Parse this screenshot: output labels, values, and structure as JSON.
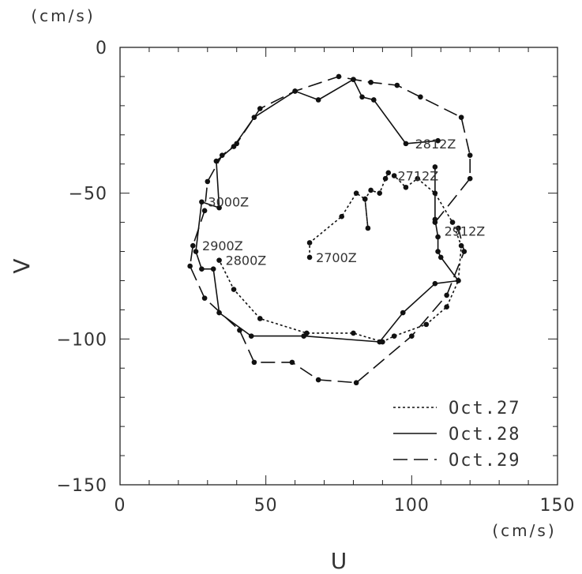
{
  "chart_data": {
    "type": "line",
    "xlabel": "U",
    "ylabel": "V",
    "x_unit": "(cm/s)",
    "y_unit": "(cm/s)",
    "xlim": [
      0,
      150
    ],
    "ylim": [
      -150,
      0
    ],
    "x_ticks": [
      0,
      50,
      100,
      150
    ],
    "y_ticks": [
      0,
      -50,
      -100,
      -150
    ],
    "x_tick_labels": [
      "0",
      "50",
      "100",
      "150"
    ],
    "y_tick_labels": [
      "0",
      "−50",
      "−100",
      "−150"
    ],
    "grid": false,
    "legend_position": "bottom-right",
    "series": [
      {
        "name": "Oct.27",
        "style": "dotted",
        "points": [
          [
            65,
            -72
          ],
          [
            65,
            -67
          ],
          [
            76,
            -58
          ],
          [
            81,
            -50
          ],
          [
            84,
            -52
          ],
          [
            85,
            -62
          ],
          [
            84,
            -52
          ],
          [
            86,
            -49
          ],
          [
            89,
            -50
          ],
          [
            91,
            -45
          ],
          [
            92,
            -43
          ],
          [
            94,
            -44
          ],
          [
            98,
            -48
          ],
          [
            102,
            -45
          ],
          [
            108,
            -50
          ],
          [
            114,
            -60
          ],
          [
            117,
            -68
          ],
          [
            116,
            -80
          ],
          [
            112,
            -89
          ],
          [
            105,
            -95
          ],
          [
            94,
            -99
          ],
          [
            90,
            -101
          ],
          [
            80,
            -98
          ],
          [
            64,
            -98
          ],
          [
            48,
            -93
          ],
          [
            39,
            -83
          ],
          [
            34,
            -73
          ]
        ]
      },
      {
        "name": "Oct.28",
        "style": "solid",
        "points": [
          [
            109,
            -32
          ],
          [
            98,
            -33
          ],
          [
            87,
            -18
          ],
          [
            83,
            -17
          ],
          [
            80,
            -11
          ],
          [
            68,
            -18
          ],
          [
            60,
            -15
          ],
          [
            46,
            -24
          ],
          [
            39,
            -34
          ],
          [
            33,
            -39
          ],
          [
            34,
            -55
          ],
          [
            28,
            -53
          ],
          [
            26,
            -70
          ],
          [
            28,
            -76
          ],
          [
            32,
            -76
          ],
          [
            34,
            -91
          ],
          [
            45,
            -99
          ],
          [
            63,
            -99
          ],
          [
            89,
            -101
          ],
          [
            97,
            -91
          ],
          [
            108,
            -81
          ],
          [
            116,
            -80
          ],
          [
            110,
            -72
          ],
          [
            109,
            -70
          ],
          [
            109,
            -65
          ],
          [
            108,
            -59
          ],
          [
            108,
            -41
          ]
        ]
      },
      {
        "name": "Oct.29",
        "style": "dashed",
        "points": [
          [
            108,
            -60
          ],
          [
            120,
            -45
          ],
          [
            120,
            -37
          ],
          [
            117,
            -24
          ],
          [
            103,
            -17
          ],
          [
            95,
            -13
          ],
          [
            86,
            -12
          ],
          [
            80,
            -11
          ],
          [
            75,
            -10
          ],
          [
            60,
            -15
          ],
          [
            48,
            -21
          ],
          [
            40,
            -33
          ],
          [
            35,
            -37
          ],
          [
            30,
            -46
          ],
          [
            29,
            -56
          ],
          [
            25,
            -68
          ],
          [
            24,
            -75
          ],
          [
            29,
            -86
          ],
          [
            41,
            -97
          ],
          [
            46,
            -108
          ],
          [
            59,
            -108
          ],
          [
            68,
            -114
          ],
          [
            81,
            -115
          ],
          [
            100,
            -99
          ],
          [
            112,
            -85
          ],
          [
            118,
            -70
          ],
          [
            116,
            -62
          ]
        ]
      }
    ],
    "annotations": [
      {
        "text": "2700Z",
        "x": 65,
        "y": -72
      },
      {
        "text": "2712Z",
        "x": 93,
        "y": -44
      },
      {
        "text": "2800Z",
        "x": 34,
        "y": -73
      },
      {
        "text": "2812Z",
        "x": 99,
        "y": -33
      },
      {
        "text": "2900Z",
        "x": 26,
        "y": -68
      },
      {
        "text": "2912Z",
        "x": 109,
        "y": -63
      },
      {
        "text": "3000Z",
        "x": 28,
        "y": -53
      }
    ]
  }
}
